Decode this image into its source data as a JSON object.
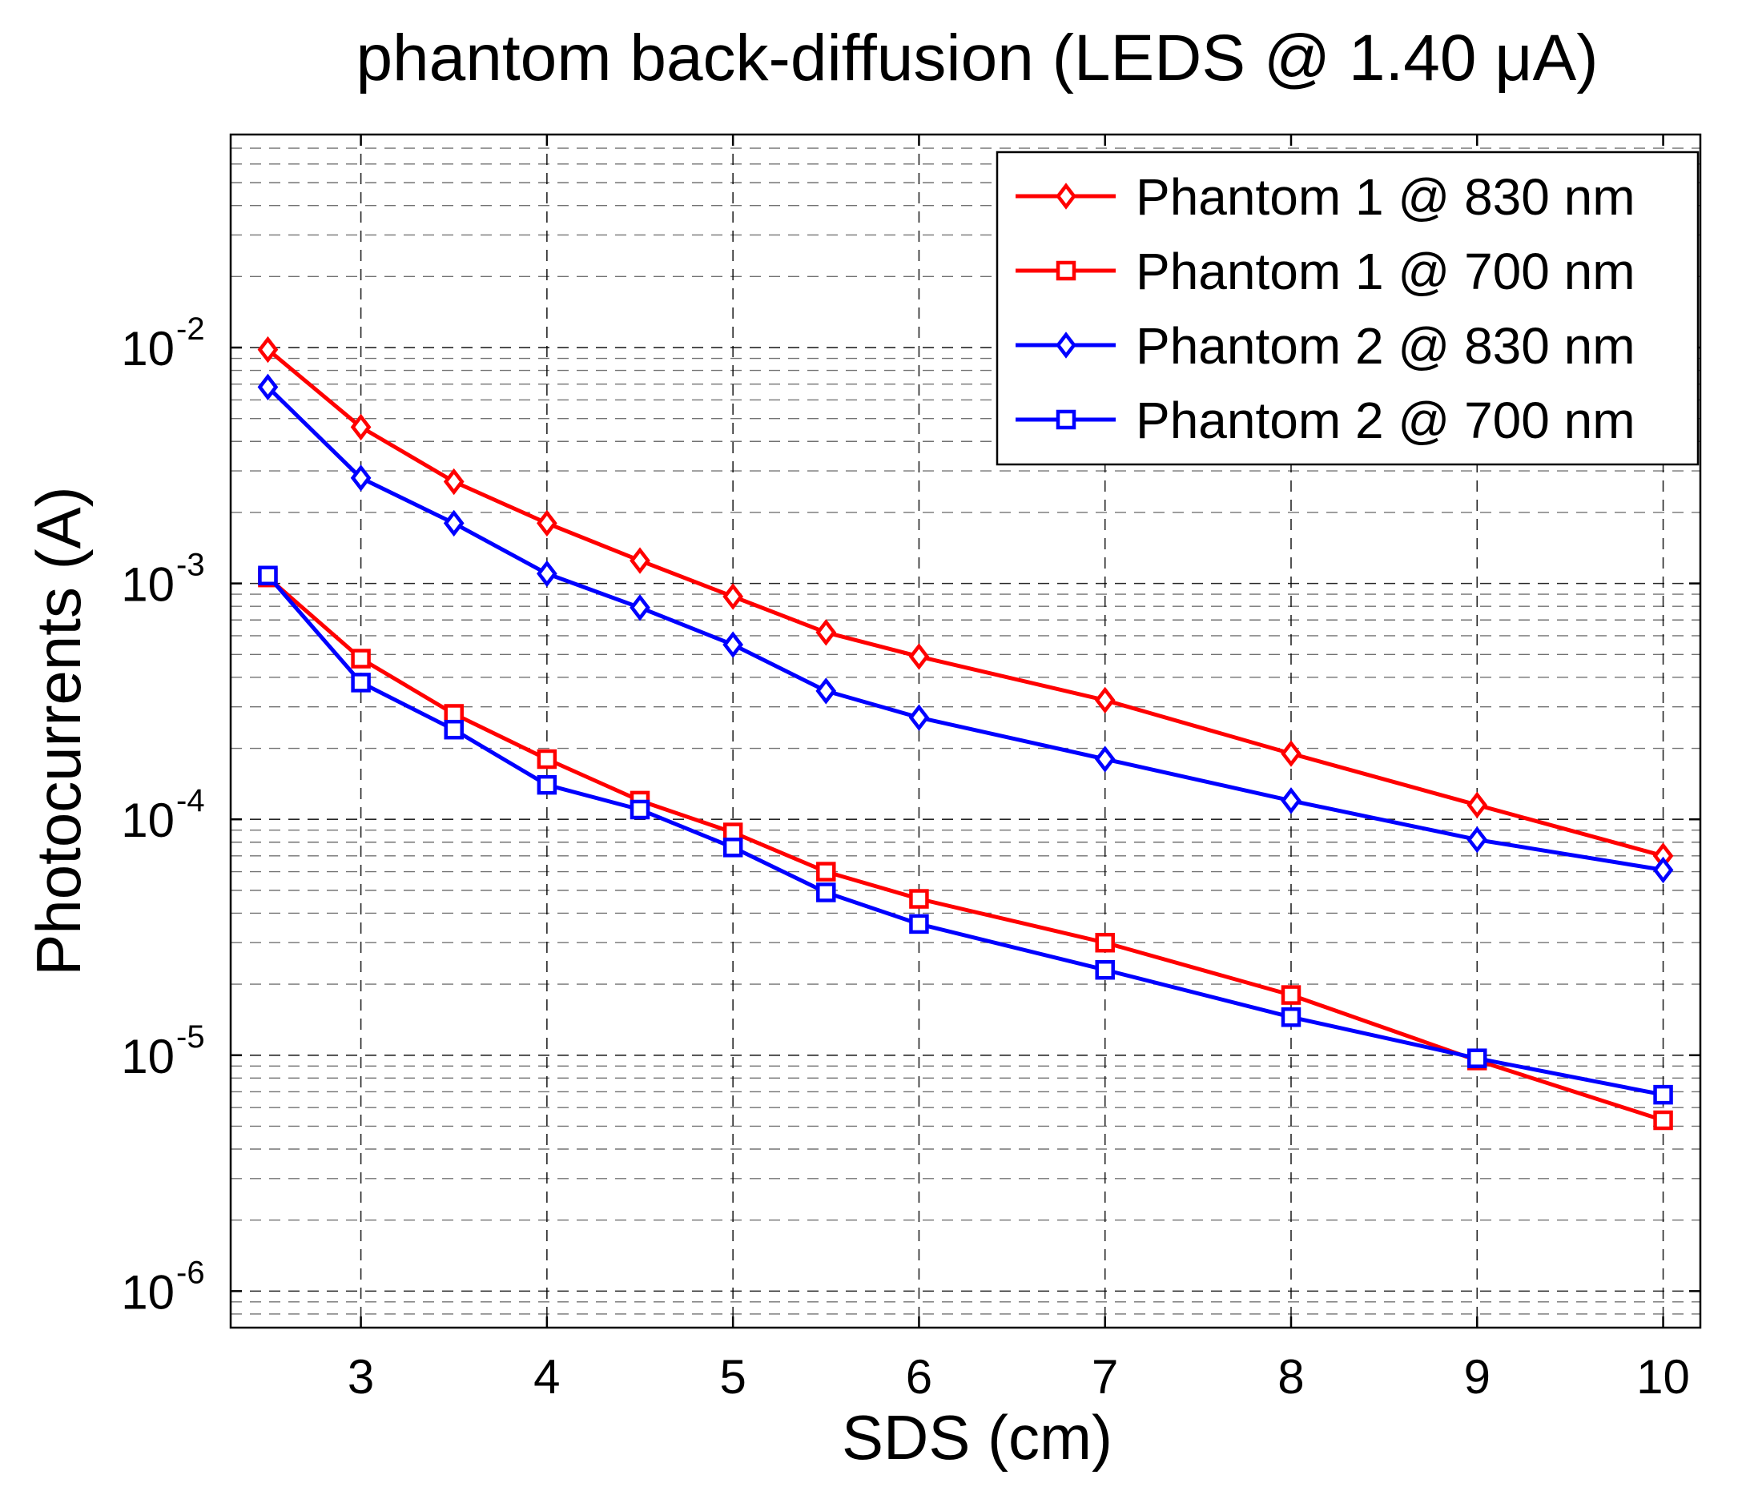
{
  "chart_data": {
    "type": "line",
    "title": "phantom back-diffusion (LEDS @ 1.40 μA)",
    "xlabel": "SDS (cm)",
    "ylabel": "Photocurrents (A)",
    "xlim": [
      2.3,
      10.2
    ],
    "ylim": [
      7e-07,
      0.08
    ],
    "yscale": "log",
    "grid": "on",
    "x": [
      2.5,
      3,
      3.5,
      4,
      4.5,
      5,
      5.5,
      6,
      7,
      8,
      9,
      10
    ],
    "x_ticks": [
      {
        "value": 3,
        "label": "3"
      },
      {
        "value": 4,
        "label": "4"
      },
      {
        "value": 5,
        "label": "5"
      },
      {
        "value": 6,
        "label": "6"
      },
      {
        "value": 7,
        "label": "7"
      },
      {
        "value": 8,
        "label": "8"
      },
      {
        "value": 9,
        "label": "9"
      },
      {
        "value": 10,
        "label": "10"
      }
    ],
    "y_ticks": [
      {
        "value": 1e-06,
        "base": "10",
        "exp": "-6"
      },
      {
        "value": 1e-05,
        "base": "10",
        "exp": "-5"
      },
      {
        "value": 0.0001,
        "base": "10",
        "exp": "-4"
      },
      {
        "value": 0.001,
        "base": "10",
        "exp": "-3"
      },
      {
        "value": 0.01,
        "base": "10",
        "exp": "-2"
      }
    ],
    "legend_position": "top-right",
    "series": [
      {
        "name": "Phantom 1 @ 830 nm",
        "color": "#ff0000",
        "marker": "diamond",
        "values": [
          0.0098,
          0.0046,
          0.0027,
          0.0018,
          0.00125,
          0.00088,
          0.00062,
          0.00049,
          0.00032,
          0.00019,
          0.000115,
          7e-05
        ]
      },
      {
        "name": "Phantom 1 @ 700 nm",
        "color": "#ff0000",
        "marker": "square",
        "values": [
          0.00106,
          0.00048,
          0.00028,
          0.00018,
          0.00012,
          8.8e-05,
          6e-05,
          4.6e-05,
          3e-05,
          1.8e-05,
          9.5e-06,
          5.3e-06
        ]
      },
      {
        "name": "Phantom 2 @ 830 nm",
        "color": "#0000ff",
        "marker": "diamond",
        "values": [
          0.0068,
          0.0028,
          0.0018,
          0.0011,
          0.00079,
          0.00055,
          0.00035,
          0.00027,
          0.00018,
          0.00012,
          8.2e-05,
          6.1e-05
        ]
      },
      {
        "name": "Phantom 2 @ 700 nm",
        "color": "#0000ff",
        "marker": "square",
        "values": [
          0.00108,
          0.00038,
          0.00024,
          0.00014,
          0.00011,
          7.6e-05,
          4.9e-05,
          3.6e-05,
          2.3e-05,
          1.45e-05,
          9.7e-06,
          6.8e-06
        ]
      }
    ]
  }
}
